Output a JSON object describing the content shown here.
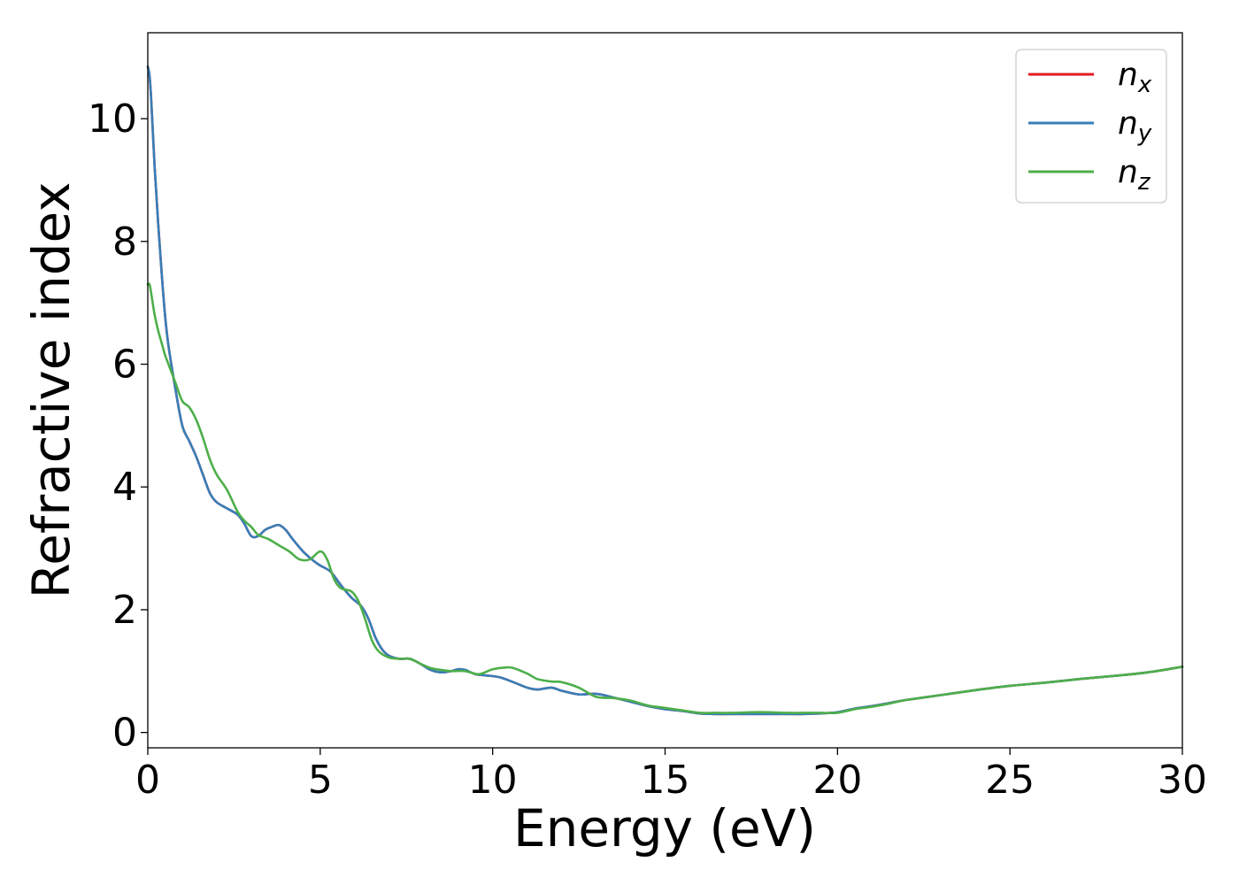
{
  "chart_data": {
    "type": "line",
    "xlabel": "Energy (eV)",
    "ylabel": "Refractive index",
    "xlim": [
      0,
      30
    ],
    "ylim": [
      -0.25,
      11.4
    ],
    "xticks": [
      0,
      5,
      10,
      15,
      20,
      25,
      30
    ],
    "yticks": [
      0,
      2,
      4,
      6,
      8,
      10
    ],
    "grid": false,
    "legend_position": "top-right",
    "series": [
      {
        "name": "n_x",
        "label_base": "n",
        "label_sub": "x",
        "color": "#e41a1c",
        "x": [
          0,
          0.05,
          0.1,
          0.2,
          0.3,
          0.4,
          0.5,
          0.6,
          0.8,
          1.0,
          1.2,
          1.4,
          1.6,
          1.8,
          2.0,
          2.3,
          2.6,
          2.8,
          3.0,
          3.2,
          3.4,
          3.6,
          3.8,
          4.0,
          4.2,
          4.5,
          4.8,
          5.0,
          5.3,
          5.6,
          5.9,
          6.2,
          6.4,
          6.6,
          6.8,
          7.0,
          7.3,
          7.6,
          7.9,
          8.2,
          8.5,
          8.8,
          9.0,
          9.2,
          9.5,
          9.8,
          10.2,
          10.6,
          11.0,
          11.3,
          11.7,
          12.0,
          12.5,
          13.0,
          13.5,
          14.0,
          14.5,
          15.0,
          15.5,
          16.0,
          16.5,
          17.0,
          17.5,
          18.0,
          18.5,
          19.0,
          19.5,
          20.0,
          20.5,
          21.0,
          21.5,
          22.0,
          23.0,
          24.0,
          25.0,
          26.0,
          27.0,
          28.0,
          29.0,
          30.0
        ],
        "y": [
          10.85,
          10.7,
          10.3,
          9.2,
          8.3,
          7.5,
          6.8,
          6.3,
          5.6,
          5.0,
          4.75,
          4.5,
          4.2,
          3.9,
          3.75,
          3.65,
          3.55,
          3.4,
          3.2,
          3.2,
          3.3,
          3.35,
          3.38,
          3.3,
          3.15,
          2.95,
          2.8,
          2.72,
          2.62,
          2.4,
          2.2,
          2.05,
          1.85,
          1.55,
          1.35,
          1.25,
          1.2,
          1.2,
          1.12,
          1.02,
          0.98,
          1.0,
          1.03,
          1.02,
          0.95,
          0.93,
          0.9,
          0.82,
          0.73,
          0.7,
          0.73,
          0.68,
          0.62,
          0.63,
          0.57,
          0.5,
          0.43,
          0.38,
          0.35,
          0.31,
          0.3,
          0.3,
          0.3,
          0.3,
          0.3,
          0.3,
          0.31,
          0.33,
          0.39,
          0.43,
          0.48,
          0.53,
          0.61,
          0.69,
          0.76,
          0.81,
          0.87,
          0.92,
          0.98,
          1.07
        ]
      },
      {
        "name": "n_y",
        "label_base": "n",
        "label_sub": "y",
        "color": "#377eb8",
        "x": [
          0,
          0.05,
          0.1,
          0.2,
          0.3,
          0.4,
          0.5,
          0.6,
          0.8,
          1.0,
          1.2,
          1.4,
          1.6,
          1.8,
          2.0,
          2.3,
          2.6,
          2.8,
          3.0,
          3.2,
          3.4,
          3.6,
          3.8,
          4.0,
          4.2,
          4.5,
          4.8,
          5.0,
          5.3,
          5.6,
          5.9,
          6.2,
          6.4,
          6.6,
          6.8,
          7.0,
          7.3,
          7.6,
          7.9,
          8.2,
          8.5,
          8.8,
          9.0,
          9.2,
          9.5,
          9.8,
          10.2,
          10.6,
          11.0,
          11.3,
          11.7,
          12.0,
          12.5,
          13.0,
          13.5,
          14.0,
          14.5,
          15.0,
          15.5,
          16.0,
          16.5,
          17.0,
          17.5,
          18.0,
          18.5,
          19.0,
          19.5,
          20.0,
          20.5,
          21.0,
          21.5,
          22.0,
          23.0,
          24.0,
          25.0,
          26.0,
          27.0,
          28.0,
          29.0,
          30.0
        ],
        "y": [
          10.85,
          10.7,
          10.3,
          9.2,
          8.3,
          7.5,
          6.8,
          6.3,
          5.6,
          5.0,
          4.75,
          4.5,
          4.2,
          3.9,
          3.75,
          3.65,
          3.55,
          3.4,
          3.2,
          3.2,
          3.3,
          3.35,
          3.38,
          3.3,
          3.15,
          2.95,
          2.8,
          2.72,
          2.62,
          2.4,
          2.2,
          2.05,
          1.85,
          1.55,
          1.35,
          1.25,
          1.2,
          1.2,
          1.12,
          1.02,
          0.98,
          1.0,
          1.03,
          1.02,
          0.95,
          0.93,
          0.9,
          0.82,
          0.73,
          0.7,
          0.73,
          0.68,
          0.62,
          0.63,
          0.57,
          0.5,
          0.43,
          0.38,
          0.35,
          0.31,
          0.3,
          0.3,
          0.3,
          0.3,
          0.3,
          0.3,
          0.31,
          0.33,
          0.39,
          0.43,
          0.48,
          0.53,
          0.61,
          0.69,
          0.76,
          0.81,
          0.87,
          0.92,
          0.98,
          1.07
        ]
      },
      {
        "name": "n_z",
        "label_base": "n",
        "label_sub": "z",
        "color": "#4daf4a",
        "x": [
          0,
          0.05,
          0.1,
          0.2,
          0.3,
          0.4,
          0.5,
          0.6,
          0.8,
          1.0,
          1.2,
          1.4,
          1.6,
          1.8,
          2.0,
          2.3,
          2.6,
          2.8,
          3.0,
          3.2,
          3.5,
          3.8,
          4.1,
          4.4,
          4.7,
          5.0,
          5.2,
          5.4,
          5.6,
          5.9,
          6.1,
          6.3,
          6.5,
          6.7,
          7.0,
          7.3,
          7.6,
          7.9,
          8.2,
          8.5,
          8.8,
          9.2,
          9.6,
          10.0,
          10.4,
          10.6,
          11.0,
          11.3,
          11.7,
          12.0,
          12.5,
          13.0,
          13.5,
          14.0,
          14.5,
          15.0,
          15.5,
          16.0,
          16.5,
          17.0,
          17.5,
          18.0,
          18.5,
          19.0,
          19.5,
          20.0,
          20.5,
          21.0,
          21.5,
          22.0,
          23.0,
          24.0,
          25.0,
          26.0,
          27.0,
          28.0,
          29.0,
          30.0
        ],
        "y": [
          7.3,
          7.3,
          7.15,
          6.8,
          6.55,
          6.35,
          6.15,
          6.0,
          5.7,
          5.4,
          5.3,
          5.1,
          4.8,
          4.45,
          4.2,
          3.95,
          3.6,
          3.45,
          3.35,
          3.22,
          3.15,
          3.05,
          2.95,
          2.82,
          2.82,
          2.95,
          2.82,
          2.5,
          2.35,
          2.3,
          2.15,
          1.85,
          1.5,
          1.32,
          1.22,
          1.2,
          1.2,
          1.12,
          1.05,
          1.02,
          1.0,
          1.0,
          0.95,
          1.03,
          1.06,
          1.05,
          0.96,
          0.87,
          0.83,
          0.82,
          0.73,
          0.58,
          0.56,
          0.52,
          0.44,
          0.4,
          0.36,
          0.32,
          0.32,
          0.32,
          0.33,
          0.33,
          0.32,
          0.32,
          0.32,
          0.32,
          0.38,
          0.42,
          0.47,
          0.53,
          0.61,
          0.69,
          0.76,
          0.81,
          0.87,
          0.92,
          0.98,
          1.07
        ]
      }
    ]
  }
}
